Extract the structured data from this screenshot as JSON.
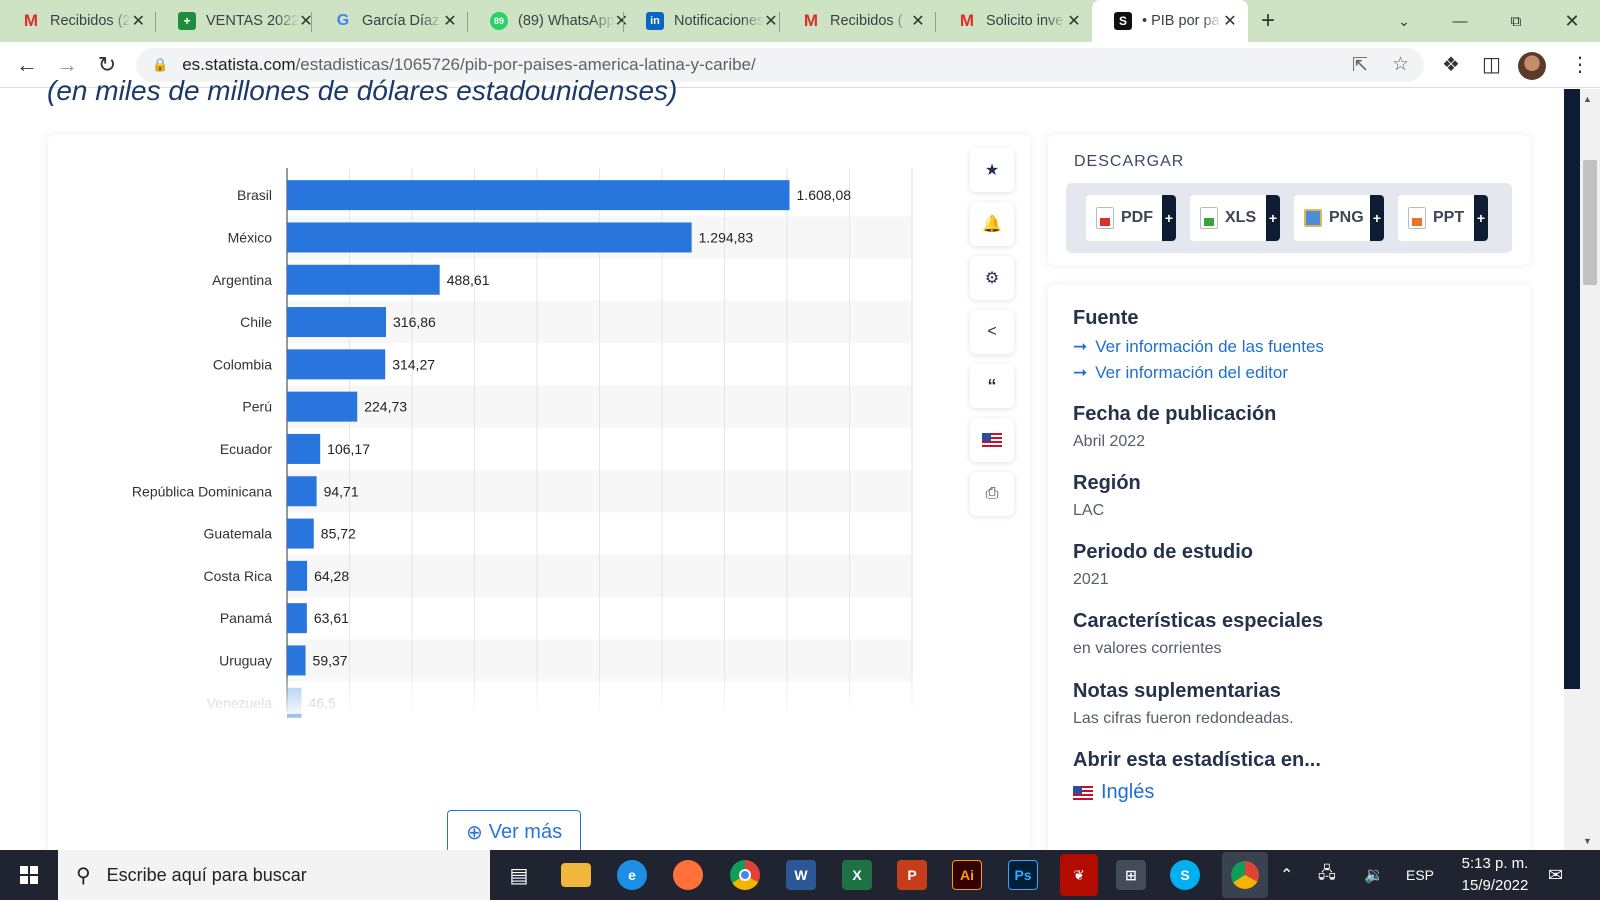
{
  "browser": {
    "tabs": [
      {
        "title": "Recibidos (2",
        "icon": "gmail-icon",
        "fav": "M"
      },
      {
        "title": "VENTAS 2022",
        "icon": "sheets-icon",
        "fav": "+"
      },
      {
        "title": "García Díaz",
        "icon": "google-icon",
        "fav": "G"
      },
      {
        "title": "(89) WhatsApp",
        "icon": "whatsapp-icon",
        "fav": "89"
      },
      {
        "title": "Notificaciones",
        "icon": "linkedin-icon",
        "fav": "in"
      },
      {
        "title": "Recibidos (",
        "icon": "gmail-icon",
        "fav": "M"
      },
      {
        "title": "Solicito inve",
        "icon": "gmail-icon",
        "fav": "M"
      },
      {
        "title": "• PIB por pa",
        "icon": "statista-icon",
        "fav": "S"
      }
    ],
    "url_host": "es.statista.com",
    "url_path": "/estadisticas/1065726/pib-por-paises-america-latina-y-caribe/"
  },
  "page": {
    "subtitle": "(en miles de millones de dólares estadounidenses)",
    "ver_mas": "Ver más"
  },
  "chart_data": {
    "type": "bar",
    "orientation": "horizontal",
    "categories": [
      "Brasil",
      "México",
      "Argentina",
      "Chile",
      "Colombia",
      "Perú",
      "Ecuador",
      "República Dominicana",
      "Guatemala",
      "Costa Rica",
      "Panamá",
      "Uruguay",
      "Venezuela"
    ],
    "values": [
      1608.08,
      1294.83,
      488.61,
      316.86,
      314.27,
      224.73,
      106.17,
      94.71,
      85.72,
      64.28,
      63.61,
      59.37,
      46.5
    ],
    "value_labels": [
      "1.608,08",
      "1.294,83",
      "488,61",
      "316,86",
      "314,27",
      "224,73",
      "106,17",
      "94,71",
      "85,72",
      "64,28",
      "63,61",
      "59,37",
      "46,5"
    ],
    "xlim": [
      0,
      2000
    ],
    "grid": true,
    "bar_color": "#2876dd"
  },
  "download": {
    "title": "DESCARGAR",
    "buttons": [
      "PDF",
      "XLS",
      "PNG",
      "PPT"
    ]
  },
  "info": {
    "fuente_h": "Fuente",
    "link_fuentes": "Ver información de las fuentes",
    "link_editor": "Ver información del editor",
    "fecha_h": "Fecha de publicación",
    "fecha_v": "Abril 2022",
    "region_h": "Región",
    "region_v": "LAC",
    "periodo_h": "Periodo de estudio",
    "periodo_v": "2021",
    "caract_h": "Características especiales",
    "caract_v": "en valores corrientes",
    "notas_h": "Notas suplementarias",
    "notas_v": "Las cifras fueron redondeadas.",
    "abrir_h": "Abrir esta estadística en...",
    "idioma": "Inglés"
  },
  "taskbar": {
    "search_placeholder": "Escribe aquí para buscar",
    "apps": [
      "Task View",
      "File Explorer",
      "Edge",
      "Firefox",
      "Chrome",
      "Word",
      "Excel",
      "PowerPoint",
      "Illustrator",
      "Photoshop",
      "Acrobat",
      "Calculator",
      "Skype",
      "Chrome"
    ],
    "lang": "ESP",
    "time": "5:13 p. m.",
    "date": "15/9/2022"
  }
}
